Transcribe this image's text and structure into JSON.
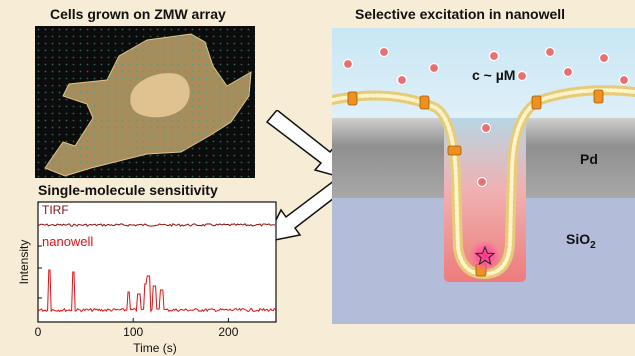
{
  "panels": {
    "cells": {
      "title": "Cells grown on ZMW array"
    },
    "excitation": {
      "title": "Selective excitation in nanowell",
      "concentration_label": "c ~ µM",
      "metal_label": "Pd",
      "substrate_label_main": "SiO",
      "substrate_label_sub": "2",
      "emitter": "star-fluorophore-icon"
    },
    "sensitivity": {
      "title": "Single-molecule sensitivity",
      "chart_data": {
        "type": "line",
        "series": [
          {
            "name": "TIRF",
            "values": []
          },
          {
            "name": "nanowell",
            "peaks_x": [
              12,
              37,
              95,
              106,
              113,
              116,
              122,
              130
            ]
          }
        ],
        "xlabel": "Time (s)",
        "ylabel": "Intensity",
        "x_ticks": [
          "0",
          "100",
          "200"
        ],
        "xlim": [
          0,
          250
        ],
        "legend": "inline-labels"
      }
    }
  },
  "colors": {
    "background": "#f7ecd6",
    "trace": "#e01010",
    "tirf_trace": "#8a1010",
    "solution": "#cfe8f4",
    "metal": "#9a9a9a",
    "substrate": "#b2bcda",
    "well_glow": "#f08a8a",
    "membrane": "#e8cf7e",
    "receptor": "#f0901e",
    "particle": "#e86060"
  }
}
